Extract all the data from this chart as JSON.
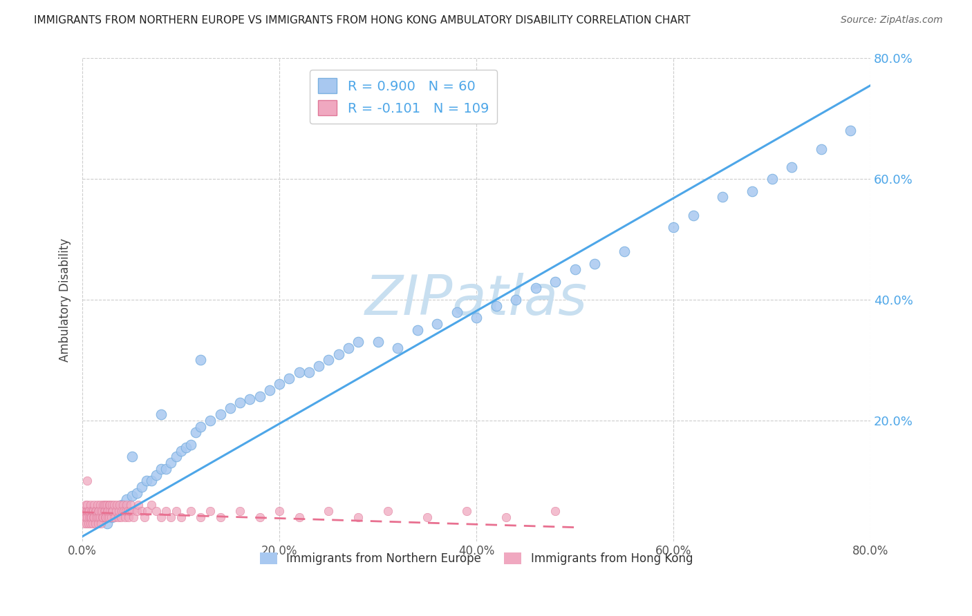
{
  "title": "IMMIGRANTS FROM NORTHERN EUROPE VS IMMIGRANTS FROM HONG KONG AMBULATORY DISABILITY CORRELATION CHART",
  "source": "Source: ZipAtlas.com",
  "ylabel": "Ambulatory Disability",
  "legend_label1": "Immigrants from Northern Europe",
  "legend_label2": "Immigrants from Hong Kong",
  "R1": 0.9,
  "N1": 60,
  "R2": -0.101,
  "N2": 109,
  "color_blue": "#a8c8f0",
  "color_blue_edge": "#7ab0e0",
  "color_pink": "#f0a8c0",
  "color_pink_edge": "#e07898",
  "color_line_blue": "#4da6e8",
  "color_line_pink": "#e87090",
  "color_tick_blue": "#4da6e8",
  "watermark_color": "#c8dff0",
  "xlim": [
    0.0,
    0.8
  ],
  "ylim": [
    0.0,
    0.8
  ],
  "xticks": [
    0.0,
    0.2,
    0.4,
    0.6,
    0.8
  ],
  "yticks": [
    0.2,
    0.4,
    0.6,
    0.8
  ],
  "xtick_labels": [
    "0.0%",
    "20.0%",
    "40.0%",
    "60.0%",
    "80.0%"
  ],
  "ytick_labels": [
    "20.0%",
    "40.0%",
    "60.0%",
    "80.0%"
  ],
  "blue_line_x0": 0.0,
  "blue_line_y0": 0.008,
  "blue_line_x1": 0.8,
  "blue_line_y1": 0.755,
  "pink_line_x0": 0.0,
  "pink_line_y0": 0.048,
  "pink_line_x1": 0.5,
  "pink_line_y1": 0.023,
  "blue_x": [
    0.025,
    0.03,
    0.035,
    0.04,
    0.045,
    0.05,
    0.055,
    0.06,
    0.065,
    0.07,
    0.075,
    0.08,
    0.085,
    0.09,
    0.095,
    0.1,
    0.105,
    0.11,
    0.115,
    0.12,
    0.13,
    0.14,
    0.15,
    0.16,
    0.17,
    0.18,
    0.19,
    0.2,
    0.21,
    0.22,
    0.23,
    0.24,
    0.25,
    0.26,
    0.27,
    0.28,
    0.3,
    0.32,
    0.34,
    0.36,
    0.38,
    0.4,
    0.42,
    0.44,
    0.46,
    0.48,
    0.5,
    0.52,
    0.55,
    0.6,
    0.62,
    0.65,
    0.68,
    0.7,
    0.72,
    0.75,
    0.78,
    0.05,
    0.08,
    0.12
  ],
  "blue_y": [
    0.03,
    0.04,
    0.05,
    0.06,
    0.07,
    0.075,
    0.08,
    0.09,
    0.1,
    0.1,
    0.11,
    0.12,
    0.12,
    0.13,
    0.14,
    0.15,
    0.155,
    0.16,
    0.18,
    0.19,
    0.2,
    0.21,
    0.22,
    0.23,
    0.235,
    0.24,
    0.25,
    0.26,
    0.27,
    0.28,
    0.28,
    0.29,
    0.3,
    0.31,
    0.32,
    0.33,
    0.33,
    0.32,
    0.35,
    0.36,
    0.38,
    0.37,
    0.39,
    0.4,
    0.42,
    0.43,
    0.45,
    0.46,
    0.48,
    0.52,
    0.54,
    0.57,
    0.58,
    0.6,
    0.62,
    0.65,
    0.68,
    0.14,
    0.21,
    0.3
  ],
  "pink_x": [
    0.001,
    0.002,
    0.002,
    0.003,
    0.003,
    0.004,
    0.004,
    0.005,
    0.005,
    0.005,
    0.006,
    0.006,
    0.007,
    0.007,
    0.008,
    0.008,
    0.008,
    0.009,
    0.009,
    0.01,
    0.01,
    0.011,
    0.011,
    0.012,
    0.012,
    0.013,
    0.013,
    0.014,
    0.014,
    0.015,
    0.015,
    0.016,
    0.016,
    0.017,
    0.017,
    0.018,
    0.018,
    0.019,
    0.019,
    0.02,
    0.02,
    0.021,
    0.021,
    0.022,
    0.022,
    0.023,
    0.023,
    0.024,
    0.024,
    0.025,
    0.025,
    0.026,
    0.026,
    0.027,
    0.027,
    0.028,
    0.028,
    0.029,
    0.03,
    0.03,
    0.031,
    0.032,
    0.033,
    0.034,
    0.035,
    0.036,
    0.037,
    0.038,
    0.039,
    0.04,
    0.041,
    0.042,
    0.043,
    0.044,
    0.045,
    0.046,
    0.047,
    0.048,
    0.049,
    0.05,
    0.052,
    0.055,
    0.057,
    0.06,
    0.063,
    0.066,
    0.07,
    0.075,
    0.08,
    0.085,
    0.09,
    0.095,
    0.1,
    0.11,
    0.12,
    0.13,
    0.14,
    0.16,
    0.18,
    0.2,
    0.22,
    0.25,
    0.28,
    0.31,
    0.35,
    0.39,
    0.43,
    0.48,
    0.005
  ],
  "pink_y": [
    0.04,
    0.05,
    0.03,
    0.06,
    0.04,
    0.05,
    0.03,
    0.05,
    0.06,
    0.04,
    0.05,
    0.03,
    0.04,
    0.05,
    0.06,
    0.04,
    0.03,
    0.05,
    0.04,
    0.05,
    0.03,
    0.04,
    0.05,
    0.06,
    0.04,
    0.03,
    0.05,
    0.04,
    0.05,
    0.06,
    0.04,
    0.05,
    0.03,
    0.04,
    0.05,
    0.06,
    0.04,
    0.05,
    0.03,
    0.04,
    0.05,
    0.06,
    0.04,
    0.05,
    0.06,
    0.04,
    0.05,
    0.06,
    0.04,
    0.05,
    0.06,
    0.04,
    0.05,
    0.06,
    0.04,
    0.05,
    0.06,
    0.04,
    0.05,
    0.06,
    0.05,
    0.06,
    0.04,
    0.05,
    0.06,
    0.04,
    0.05,
    0.06,
    0.04,
    0.05,
    0.06,
    0.05,
    0.04,
    0.05,
    0.06,
    0.05,
    0.04,
    0.05,
    0.06,
    0.05,
    0.04,
    0.05,
    0.06,
    0.05,
    0.04,
    0.05,
    0.06,
    0.05,
    0.04,
    0.05,
    0.04,
    0.05,
    0.04,
    0.05,
    0.04,
    0.05,
    0.04,
    0.05,
    0.04,
    0.05,
    0.04,
    0.05,
    0.04,
    0.05,
    0.04,
    0.05,
    0.04,
    0.05,
    0.1
  ]
}
